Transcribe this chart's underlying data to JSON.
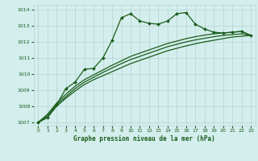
{
  "title": "Graphe pression niveau de la mer (hPa)",
  "background_color": "#d4eeed",
  "grid_color": "#b8d8d4",
  "line_color": "#1a5c1a",
  "xlim": [
    -0.5,
    23.5
  ],
  "ylim": [
    1006.8,
    1014.3
  ],
  "xticks": [
    0,
    1,
    2,
    3,
    4,
    5,
    6,
    7,
    8,
    9,
    10,
    11,
    12,
    13,
    14,
    15,
    16,
    17,
    18,
    19,
    20,
    21,
    22,
    23
  ],
  "yticks": [
    1007,
    1008,
    1009,
    1010,
    1011,
    1012,
    1013,
    1014
  ],
  "series": [
    {
      "x": [
        0,
        1,
        2,
        3,
        4,
        5,
        6,
        7,
        8,
        9,
        10,
        11,
        12,
        13,
        14,
        15,
        16,
        17,
        18,
        19,
        20,
        21,
        22,
        23
      ],
      "y": [
        1007.0,
        1007.3,
        1008.1,
        1009.1,
        1009.5,
        1010.3,
        1010.35,
        1011.0,
        1012.1,
        1013.5,
        1013.75,
        1013.3,
        1013.15,
        1013.1,
        1013.3,
        1013.75,
        1013.82,
        1013.1,
        1012.8,
        1012.6,
        1012.55,
        1012.6,
        1012.65,
        1012.4
      ],
      "marker": "D",
      "markersize": 2.0,
      "linewidth": 0.9
    },
    {
      "x": [
        0,
        1,
        2,
        3,
        4,
        5,
        6,
        7,
        8,
        9,
        10,
        11,
        12,
        13,
        14,
        15,
        16,
        17,
        18,
        19,
        20,
        21,
        22,
        23
      ],
      "y": [
        1007.0,
        1007.3,
        1008.0,
        1008.5,
        1008.95,
        1009.35,
        1009.65,
        1009.9,
        1010.15,
        1010.4,
        1010.65,
        1010.85,
        1011.05,
        1011.25,
        1011.45,
        1011.6,
        1011.75,
        1011.88,
        1012.0,
        1012.1,
        1012.2,
        1012.3,
        1012.35,
        1012.4
      ],
      "marker": "",
      "markersize": 0,
      "linewidth": 0.9
    },
    {
      "x": [
        0,
        1,
        2,
        3,
        4,
        5,
        6,
        7,
        8,
        9,
        10,
        11,
        12,
        13,
        14,
        15,
        16,
        17,
        18,
        19,
        20,
        21,
        22,
        23
      ],
      "y": [
        1007.0,
        1007.4,
        1008.1,
        1008.6,
        1009.1,
        1009.5,
        1009.8,
        1010.1,
        1010.38,
        1010.65,
        1010.9,
        1011.1,
        1011.3,
        1011.5,
        1011.7,
        1011.85,
        1012.0,
        1012.12,
        1012.22,
        1012.32,
        1012.4,
        1012.45,
        1012.5,
        1012.4
      ],
      "marker": "",
      "markersize": 0,
      "linewidth": 0.9
    },
    {
      "x": [
        0,
        1,
        2,
        3,
        4,
        5,
        6,
        7,
        8,
        9,
        10,
        11,
        12,
        13,
        14,
        15,
        16,
        17,
        18,
        19,
        20,
        21,
        22,
        23
      ],
      "y": [
        1007.0,
        1007.5,
        1008.2,
        1008.75,
        1009.25,
        1009.65,
        1009.95,
        1010.25,
        1010.55,
        1010.82,
        1011.1,
        1011.3,
        1011.5,
        1011.7,
        1011.9,
        1012.05,
        1012.2,
        1012.32,
        1012.42,
        1012.5,
        1012.55,
        1012.6,
        1012.65,
        1012.4
      ],
      "marker": "",
      "markersize": 0,
      "linewidth": 0.9
    }
  ]
}
